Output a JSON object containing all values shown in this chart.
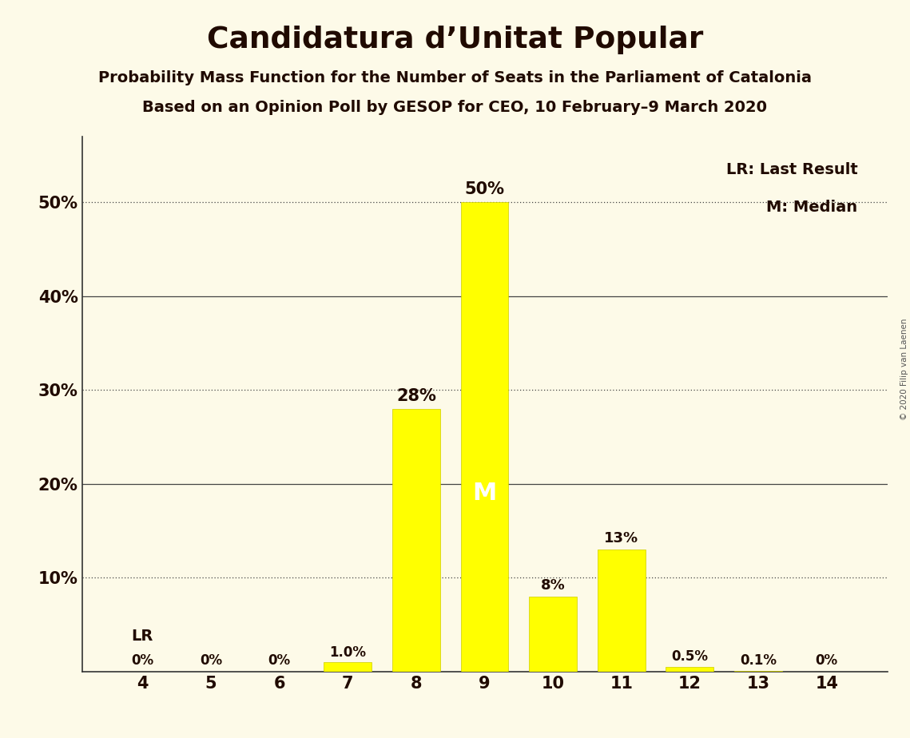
{
  "title": "Candidatura d’Unitat Popular",
  "subtitle1": "Probability Mass Function for the Number of Seats in the Parliament of Catalonia",
  "subtitle2": "Based on an Opinion Poll by GESOP for CEO, 10 February–9 March 2020",
  "copyright": "© 2020 Filip van Laenen",
  "categories": [
    4,
    5,
    6,
    7,
    8,
    9,
    10,
    11,
    12,
    13,
    14
  ],
  "values": [
    0.0,
    0.0,
    0.0,
    1.0,
    28.0,
    50.0,
    8.0,
    13.0,
    0.5,
    0.1,
    0.0
  ],
  "bar_labels": [
    "0%",
    "0%",
    "0%",
    "1.0%",
    "28%",
    "50%",
    "8%",
    "13%",
    "0.5%",
    "0.1%",
    "0%"
  ],
  "bar_color": "#ffff00",
  "bar_edge_color": "#cccc00",
  "background_color": "#fdfae8",
  "title_color": "#200a00",
  "median_seat": 9,
  "lr_seat": 4,
  "lr_label": "LR",
  "median_label": "M",
  "legend_lr": "LR: Last Result",
  "legend_m": "M: Median",
  "dotted_lines": [
    10,
    30,
    50
  ],
  "solid_lines": [
    20,
    40
  ],
  "ylim": [
    0,
    57
  ]
}
